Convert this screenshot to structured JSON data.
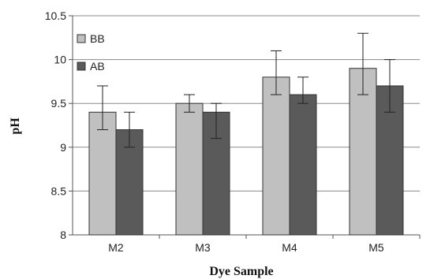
{
  "chart_data": {
    "type": "bar",
    "title": "",
    "xlabel": "Dye Sample",
    "ylabel": "pH",
    "categories": [
      "M2",
      "M3",
      "M4",
      "M5"
    ],
    "ylim": [
      8,
      10.5
    ],
    "yticks": [
      8,
      8.5,
      9,
      9.5,
      10,
      10.5
    ],
    "ytick_labels": [
      "8",
      "8.5",
      "9",
      "9.5",
      "10",
      "10.5"
    ],
    "grid": true,
    "legend_position": "top-left",
    "series": [
      {
        "name": "BB",
        "color": "#c0c0c0",
        "values": [
          9.4,
          9.5,
          9.8,
          9.9
        ],
        "error_low": [
          9.2,
          9.4,
          9.6,
          9.6
        ],
        "error_high": [
          9.7,
          9.6,
          10.1,
          10.3
        ]
      },
      {
        "name": "AB",
        "color": "#5a5a5a",
        "values": [
          9.2,
          9.4,
          9.6,
          9.7
        ],
        "error_low": [
          9.0,
          9.1,
          9.5,
          9.4
        ],
        "error_high": [
          9.4,
          9.5,
          9.8,
          10.0
        ]
      }
    ]
  }
}
